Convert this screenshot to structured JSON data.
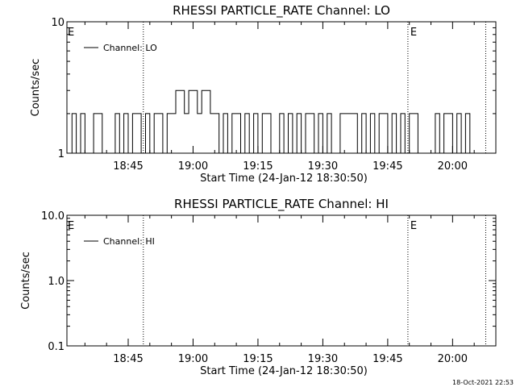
{
  "footer": {
    "timestamp": "18-Oct-2021 22:53"
  },
  "chart_data": [
    {
      "type": "line",
      "title": "RHESSI PARTICLE_RATE Channel: LO",
      "xlabel": "Start Time (24-Jan-12 18:30:50)",
      "ylabel": "Counts/sec",
      "yscale": "log",
      "ylim": [
        1,
        10
      ],
      "yticks": [
        1,
        10
      ],
      "ytick_labels": [
        "1",
        "10"
      ],
      "xlim": [
        "18:30:50",
        "20:10:00"
      ],
      "xticks": [
        "18:45",
        "19:00",
        "19:15",
        "19:30",
        "19:45",
        "20:00"
      ],
      "grid": false,
      "legend": {
        "position": "top-left",
        "entries": [
          "Channel: LO"
        ]
      },
      "markers": [
        {
          "time": "18:48:30",
          "label": ""
        },
        {
          "time": "19:49:40",
          "label": "E"
        },
        {
          "time": "20:07:40",
          "label": ""
        }
      ],
      "edge_labels": [
        {
          "position": "left",
          "label": "E"
        }
      ],
      "series": [
        {
          "name": "Channel: LO",
          "step": true,
          "x": [
            "18:30:50",
            "18:32:00",
            "18:33:00",
            "18:34:00",
            "18:35:00",
            "18:36:00",
            "18:37:00",
            "18:38:00",
            "18:39:00",
            "18:40:00",
            "18:41:00",
            "18:42:00",
            "18:43:00",
            "18:44:00",
            "18:45:00",
            "18:46:00",
            "18:47:00",
            "18:48:00",
            "18:49:00",
            "18:50:00",
            "18:51:00",
            "18:52:00",
            "18:53:00",
            "18:54:00",
            "18:55:00",
            "18:56:00",
            "18:57:00",
            "18:58:00",
            "18:59:00",
            "19:00:00",
            "19:01:00",
            "19:02:00",
            "19:03:00",
            "19:04:00",
            "19:05:00",
            "19:06:00",
            "19:07:00",
            "19:08:00",
            "19:09:00",
            "19:10:00",
            "19:11:00",
            "19:12:00",
            "19:13:00",
            "19:14:00",
            "19:15:00",
            "19:16:00",
            "19:17:00",
            "19:18:00",
            "19:19:00",
            "19:20:00",
            "19:21:00",
            "19:22:00",
            "19:23:00",
            "19:24:00",
            "19:25:00",
            "19:26:00",
            "19:27:00",
            "19:28:00",
            "19:29:00",
            "19:30:00",
            "19:31:00",
            "19:32:00",
            "19:33:00",
            "19:34:00",
            "19:35:00",
            "19:36:00",
            "19:37:00",
            "19:38:00",
            "19:39:00",
            "19:40:00",
            "19:41:00",
            "19:42:00",
            "19:43:00",
            "19:44:00",
            "19:45:00",
            "19:46:00",
            "19:47:00",
            "19:48:00",
            "19:49:00",
            "19:50:00",
            "19:51:00",
            "19:52:00",
            "19:53:00",
            "19:54:00",
            "19:55:00",
            "19:56:00",
            "19:57:00",
            "19:58:00",
            "19:59:00",
            "20:00:00",
            "20:01:00",
            "20:02:00",
            "20:03:00",
            "20:04:00"
          ],
          "y": [
            1,
            2,
            1,
            2,
            1,
            1,
            2,
            2,
            1,
            1,
            1,
            2,
            1,
            2,
            1,
            2,
            2,
            1,
            2,
            1,
            2,
            2,
            1,
            2,
            2,
            3,
            3,
            2,
            3,
            3,
            2,
            3,
            3,
            2,
            2,
            1,
            2,
            1,
            2,
            2,
            1,
            2,
            1,
            2,
            1,
            2,
            2,
            1,
            1,
            2,
            1,
            2,
            1,
            2,
            1,
            2,
            2,
            1,
            2,
            1,
            2,
            1,
            1,
            2,
            2,
            2,
            2,
            1,
            2,
            1,
            2,
            1,
            2,
            2,
            1,
            2,
            1,
            2,
            1,
            2,
            2,
            1,
            1,
            1,
            1,
            2,
            1,
            2,
            2,
            1,
            2,
            1,
            2,
            1
          ]
        }
      ]
    },
    {
      "type": "line",
      "title": "RHESSI PARTICLE_RATE Channel: HI",
      "xlabel": "Start Time (24-Jan-12 18:30:50)",
      "ylabel": "Counts/sec",
      "yscale": "log",
      "ylim": [
        0.1,
        10
      ],
      "yticks": [
        0.1,
        1.0,
        10.0
      ],
      "ytick_labels": [
        "0.1",
        "1.0",
        "10.0"
      ],
      "xlim": [
        "18:30:50",
        "20:10:00"
      ],
      "xticks": [
        "18:45",
        "19:00",
        "19:15",
        "19:30",
        "19:45",
        "20:00"
      ],
      "grid": false,
      "legend": {
        "position": "top-left",
        "entries": [
          "Channel: HI"
        ]
      },
      "markers": [
        {
          "time": "18:48:30",
          "label": ""
        },
        {
          "time": "19:49:40",
          "label": "E"
        },
        {
          "time": "20:07:40",
          "label": ""
        }
      ],
      "edge_labels": [
        {
          "position": "left",
          "label": "E"
        }
      ],
      "series": [
        {
          "name": "Channel: HI",
          "step": true,
          "x": [],
          "y": []
        }
      ]
    }
  ]
}
